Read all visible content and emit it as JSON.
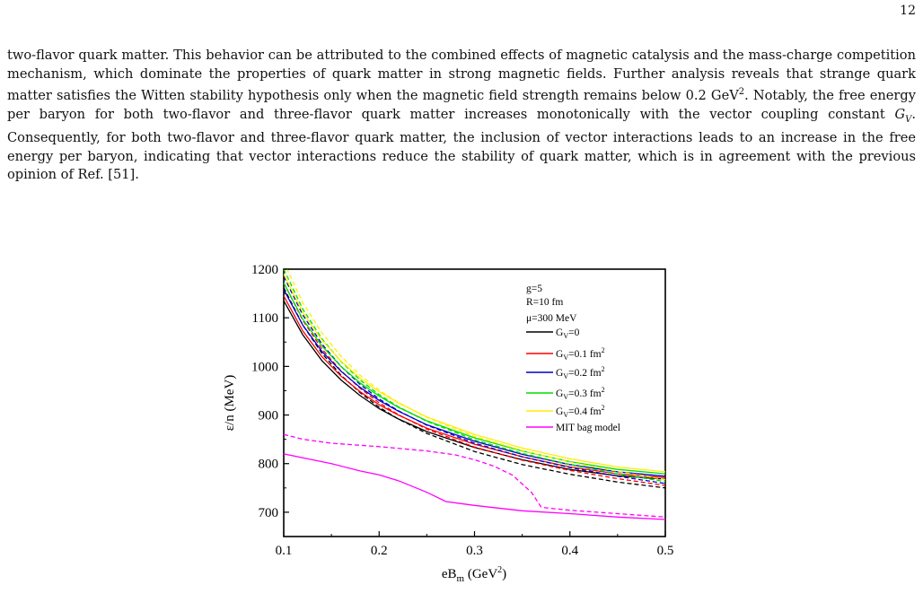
{
  "page": {
    "number": "12",
    "paragraph": {
      "before_unit": "two-flavor quark matter. This behavior can be attributed to the combined effects of magnetic catalysis and the mass-charge competition mechanism, which dominate the properties of quark matter in strong magnetic fields. Further analysis reveals that strange quark matter satisfies the Witten stability hypothesis only when the magnetic field strength remains below 0.2 GeV",
      "unit_exp": "2",
      "middle": ". Notably, the free energy per baryon for both two-flavor and three-flavor quark matter increases monotonically with the vector coupling constant ",
      "symbol": "G",
      "symbol_sub": "V",
      "after": ". Consequently, for both two-flavor and three-flavor quark matter, the inclusion of vector interactions leads to an increase in the free energy per baryon, indicating that vector interactions reduce the stability of quark matter, which is in agreement with the previous opinion of Ref. [51]."
    }
  },
  "chart_data": {
    "type": "line",
    "xlabel": "eB",
    "xlabel_sub": "m",
    "xlabel_unit": " (GeV",
    "xlabel_unit_exp": "2",
    "xlabel_close": ")",
    "ylabel": "ε/n (MeV)",
    "xlim": [
      0.1,
      0.5
    ],
    "ylim": [
      650,
      1200
    ],
    "xticks": [
      "0.1",
      "0.2",
      "0.3",
      "0.4",
      "0.5"
    ],
    "xtick_values": [
      0.1,
      0.2,
      0.3,
      0.4,
      0.5
    ],
    "yticks": [
      "700",
      "800",
      "900",
      "1000",
      "1100",
      "1200"
    ],
    "ytick_values": [
      700,
      800,
      900,
      1000,
      1100,
      1200
    ],
    "annotations": [
      "g=5",
      "R=10 fm",
      "μ=300 MeV"
    ],
    "legend_position": "top-right",
    "legend": [
      {
        "text": "G",
        "sub": "V",
        "rest": "=0",
        "unit": "",
        "exp": "",
        "color": "#000000"
      },
      {
        "text": "G",
        "sub": "V",
        "rest": "=0.1 fm",
        "exp": "2",
        "color": "#ff0000"
      },
      {
        "text": "G",
        "sub": "V",
        "rest": "=0.2 fm",
        "exp": "2",
        "color": "#0000cc"
      },
      {
        "text": "G",
        "sub": "V",
        "rest": "=0.3 fm",
        "exp": "2",
        "color": "#00dd00"
      },
      {
        "text": "G",
        "sub": "V",
        "rest": "=0.4 fm",
        "exp": "2",
        "color": "#ffee00"
      },
      {
        "text": "MIT bag model",
        "sub": "",
        "rest": "",
        "exp": "",
        "color": "#ff00ff"
      }
    ],
    "x": [
      0.1,
      0.12,
      0.14,
      0.16,
      0.18,
      0.2,
      0.22,
      0.25,
      0.3,
      0.35,
      0.4,
      0.45,
      0.5
    ],
    "series": [
      {
        "color": "#000000",
        "dash": false,
        "values": [
          1135,
          1065,
          1012,
          972,
          940,
          913,
          892,
          866,
          833,
          808,
          788,
          775,
          768
        ]
      },
      {
        "color": "#000000",
        "dash": true,
        "values": [
          1162,
          1085,
          1027,
          982,
          946,
          916,
          892,
          862,
          825,
          798,
          778,
          762,
          750
        ]
      },
      {
        "color": "#ff0000",
        "dash": false,
        "values": [
          1145,
          1073,
          1020,
          980,
          948,
          921,
          900,
          873,
          840,
          814,
          793,
          779,
          771
        ]
      },
      {
        "color": "#ff0000",
        "dash": true,
        "values": [
          1172,
          1095,
          1036,
          991,
          955,
          925,
          901,
          871,
          834,
          807,
          786,
          769,
          755
        ]
      },
      {
        "color": "#0000cc",
        "dash": false,
        "values": [
          1158,
          1085,
          1031,
          990,
          957,
          930,
          908,
          880,
          846,
          819,
          798,
          783,
          774
        ]
      },
      {
        "color": "#0000cc",
        "dash": true,
        "values": [
          1185,
          1106,
          1046,
          1000,
          963,
          933,
          909,
          879,
          842,
          814,
          792,
          774,
          759
        ]
      },
      {
        "color": "#00dd00",
        "dash": false,
        "values": [
          1172,
          1097,
          1042,
          1000,
          966,
          939,
          916,
          888,
          853,
          826,
          804,
          788,
          779
        ]
      },
      {
        "color": "#00dd00",
        "dash": true,
        "values": [
          1200,
          1118,
          1057,
          1010,
          972,
          942,
          917,
          887,
          849,
          821,
          798,
          779,
          763
        ]
      },
      {
        "color": "#ffee00",
        "dash": false,
        "values": [
          1190,
          1111,
          1054,
          1011,
          976,
          948,
          925,
          896,
          860,
          832,
          810,
          793,
          783
        ]
      },
      {
        "color": "#ffee00",
        "dash": true,
        "values": [
          1215,
          1131,
          1069,
          1021,
          982,
          951,
          926,
          895,
          856,
          827,
          803,
          784,
          767
        ]
      },
      {
        "color": "#ff00ff",
        "dash": false,
        "x": [
          0.1,
          0.12,
          0.15,
          0.18,
          0.2,
          0.22,
          0.25,
          0.27,
          0.3,
          0.35,
          0.4,
          0.45,
          0.5
        ],
        "values": [
          820,
          812,
          800,
          785,
          777,
          765,
          741,
          722,
          714,
          703,
          697,
          690,
          685
        ]
      },
      {
        "color": "#ff00ff",
        "dash": true,
        "x": [
          0.1,
          0.12,
          0.15,
          0.2,
          0.25,
          0.28,
          0.3,
          0.32,
          0.34,
          0.36,
          0.37,
          0.4,
          0.45,
          0.5
        ],
        "values": [
          860,
          850,
          842,
          835,
          826,
          818,
          808,
          795,
          776,
          740,
          710,
          704,
          697,
          690
        ]
      }
    ]
  }
}
